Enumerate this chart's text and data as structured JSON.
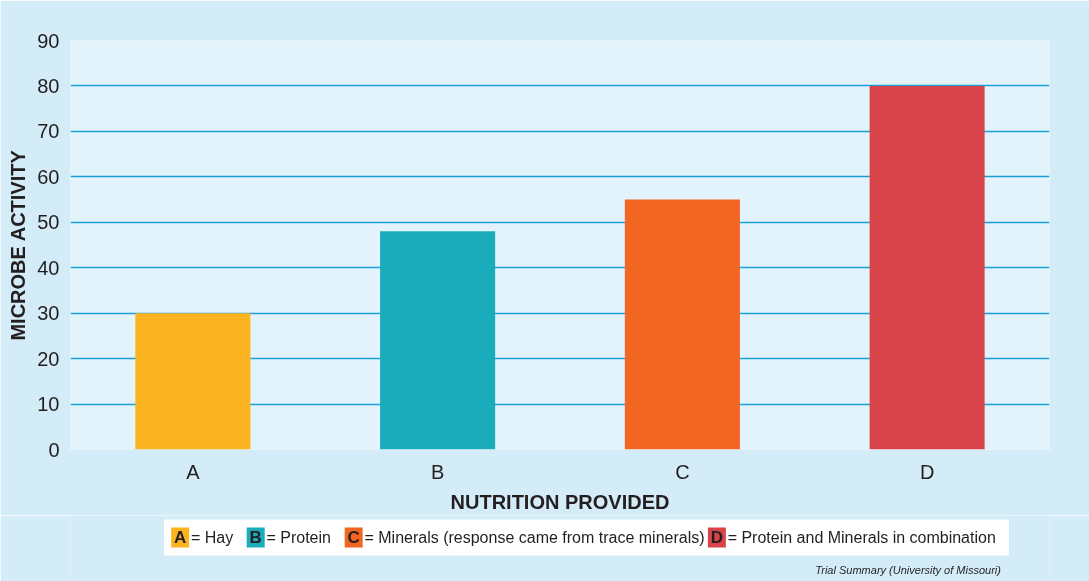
{
  "chart_data": {
    "type": "bar",
    "categories": [
      "A",
      "B",
      "C",
      "D"
    ],
    "series": [
      {
        "name": "= Hay",
        "color": "#fbb41f",
        "values": [
          30,
          null,
          null,
          null
        ]
      },
      {
        "name": "= Protein",
        "color": "#1aacbb",
        "values": [
          null,
          48,
          null,
          null
        ]
      },
      {
        "name": "= Minerals (response came from trace minerals)",
        "color": "#f26522",
        "values": [
          null,
          null,
          55,
          null
        ]
      },
      {
        "name": "= Protein and Minerals in combination",
        "color": "#d9444b",
        "values": [
          null,
          null,
          null,
          80
        ]
      }
    ],
    "xlabel": "NUTRITION PROVIDED",
    "ylabel": "MICROBE ACTIVITY",
    "ylim": [
      0,
      90
    ],
    "yticks": [
      0,
      10,
      20,
      30,
      40,
      50,
      60,
      70,
      80,
      90
    ],
    "grid": "y",
    "legend": "bottom",
    "annotations": [
      "Trial Summary (University of Missouri)"
    ]
  }
}
